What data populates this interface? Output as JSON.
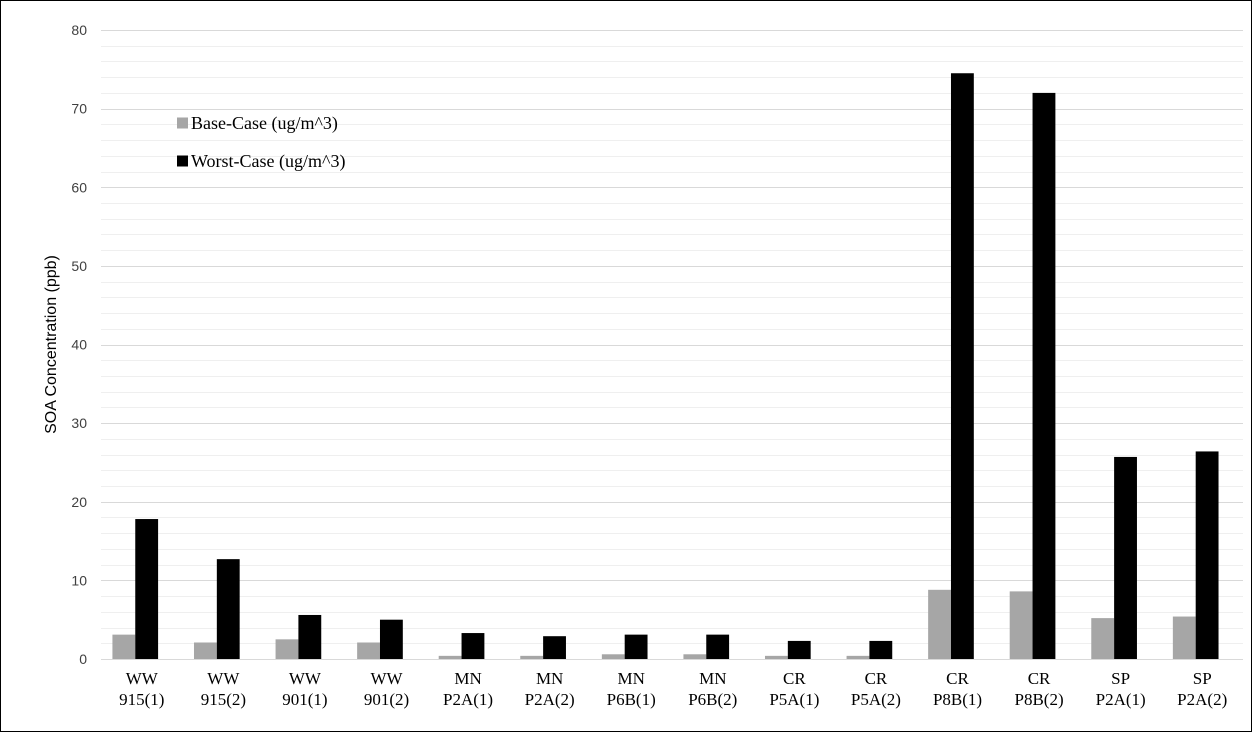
{
  "chart_data": {
    "type": "bar",
    "ylabel": "SOA Concentration  (ppb)",
    "ylim": [
      0,
      80
    ],
    "y_major_ticks": [
      0,
      10,
      20,
      30,
      40,
      50,
      60,
      70,
      80
    ],
    "grid": true,
    "legend_position": "top-left",
    "categories": [
      [
        "WW",
        "915(1)"
      ],
      [
        "WW",
        "915(2)"
      ],
      [
        "WW",
        "901(1)"
      ],
      [
        "WW",
        "901(2)"
      ],
      [
        "MN",
        "P2A(1)"
      ],
      [
        "MN",
        "P2A(2)"
      ],
      [
        "MN",
        "P6B(1)"
      ],
      [
        "MN",
        "P6B(2)"
      ],
      [
        "CR",
        "P5A(1)"
      ],
      [
        "CR",
        "P5A(2)"
      ],
      [
        "CR",
        "P8B(1)"
      ],
      [
        "CR",
        "P8B(2)"
      ],
      [
        "SP",
        "P2A(1)"
      ],
      [
        "SP",
        "P2A(2)"
      ]
    ],
    "series": [
      {
        "name": "Base-Case (ug/m^3)",
        "color": "#a6a6a6",
        "values": [
          3.1,
          2.1,
          2.5,
          2.1,
          0.4,
          0.4,
          0.6,
          0.6,
          0.4,
          0.4,
          8.8,
          8.6,
          5.2,
          5.4
        ]
      },
      {
        "name": "Worst-Case (ug/m^3)",
        "color": "#000000",
        "values": [
          17.8,
          12.7,
          5.6,
          5.0,
          3.3,
          2.9,
          3.1,
          3.1,
          2.3,
          2.3,
          74.5,
          72.0,
          25.7,
          26.4
        ]
      }
    ]
  }
}
